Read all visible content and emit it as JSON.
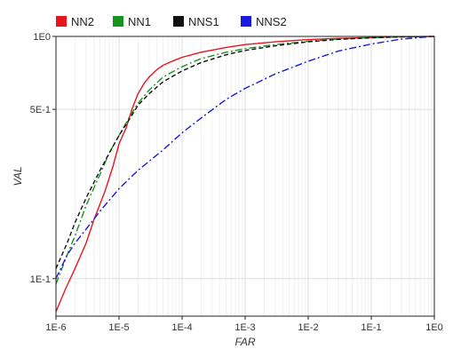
{
  "chart_data": {
    "type": "line",
    "xlabel": "FAR",
    "ylabel": "VAL",
    "x_scale": "log",
    "y_scale": "log",
    "xlim": [
      1e-06,
      1
    ],
    "ylim": [
      0.07,
      1
    ],
    "x_ticks": [
      1e-06,
      1e-05,
      0.0001,
      0.001,
      0.01,
      0.1,
      1
    ],
    "x_tick_labels": [
      "1E-6",
      "1E-5",
      "1E-4",
      "1E-3",
      "1E-2",
      "1E-1",
      "1E0"
    ],
    "y_ticks": [
      0.1,
      0.5,
      1
    ],
    "y_tick_labels": [
      "1E-1",
      "5E-1",
      "1E0"
    ],
    "grid": true,
    "legend_position": "top-left",
    "series": [
      {
        "name": "NN2",
        "color": "#e8141e",
        "dash": "solid",
        "points": [
          [
            1e-06,
            0.073
          ],
          [
            1.4e-06,
            0.09
          ],
          [
            2e-06,
            0.11
          ],
          [
            3e-06,
            0.14
          ],
          [
            4e-06,
            0.175
          ],
          [
            6e-06,
            0.23
          ],
          [
            8e-06,
            0.29
          ],
          [
            1e-05,
            0.36
          ],
          [
            1.3e-05,
            0.42
          ],
          [
            1.6e-05,
            0.5
          ],
          [
            2e-05,
            0.58
          ],
          [
            2.5e-05,
            0.64
          ],
          [
            3e-05,
            0.68
          ],
          [
            4e-05,
            0.73
          ],
          [
            5e-05,
            0.76
          ],
          [
            7e-05,
            0.79
          ],
          [
            0.0001,
            0.82
          ],
          [
            0.0002,
            0.86
          ],
          [
            0.0005,
            0.9
          ],
          [
            0.001,
            0.925
          ],
          [
            0.003,
            0.95
          ],
          [
            0.01,
            0.97
          ],
          [
            0.03,
            0.982
          ],
          [
            0.1,
            0.99
          ],
          [
            0.3,
            0.996
          ],
          [
            1,
            1
          ]
        ]
      },
      {
        "name": "NN1",
        "color": "#16961e",
        "dash": "dashdot",
        "points": [
          [
            1e-06,
            0.095
          ],
          [
            1.5e-06,
            0.125
          ],
          [
            2e-06,
            0.15
          ],
          [
            3e-06,
            0.2
          ],
          [
            5e-06,
            0.27
          ],
          [
            7e-06,
            0.33
          ],
          [
            1e-05,
            0.39
          ],
          [
            1.5e-05,
            0.47
          ],
          [
            2e-05,
            0.53
          ],
          [
            3e-05,
            0.6
          ],
          [
            5e-05,
            0.68
          ],
          [
            0.0001,
            0.75
          ],
          [
            0.0002,
            0.81
          ],
          [
            0.0005,
            0.86
          ],
          [
            0.001,
            0.89
          ],
          [
            0.003,
            0.925
          ],
          [
            0.01,
            0.955
          ],
          [
            0.03,
            0.975
          ],
          [
            0.1,
            0.988
          ],
          [
            0.3,
            0.996
          ],
          [
            1,
            1
          ]
        ]
      },
      {
        "name": "NNS1",
        "color": "#111111",
        "dash": "dashed",
        "points": [
          [
            1e-06,
            0.11
          ],
          [
            1.5e-06,
            0.14
          ],
          [
            2e-06,
            0.17
          ],
          [
            3e-06,
            0.215
          ],
          [
            5e-06,
            0.28
          ],
          [
            7e-06,
            0.33
          ],
          [
            1e-05,
            0.39
          ],
          [
            1.5e-05,
            0.46
          ],
          [
            2e-05,
            0.52
          ],
          [
            3e-05,
            0.58
          ],
          [
            5e-05,
            0.65
          ],
          [
            0.0001,
            0.72
          ],
          [
            0.0002,
            0.78
          ],
          [
            0.0005,
            0.84
          ],
          [
            0.001,
            0.875
          ],
          [
            0.003,
            0.915
          ],
          [
            0.01,
            0.95
          ],
          [
            0.03,
            0.972
          ],
          [
            0.1,
            0.987
          ],
          [
            0.3,
            0.995
          ],
          [
            1,
            1
          ]
        ]
      },
      {
        "name": "NNS2",
        "color": "#1a1adc",
        "dash": "dashdot",
        "points": [
          [
            1e-06,
            0.1
          ],
          [
            1.5e-06,
            0.125
          ],
          [
            2e-06,
            0.14
          ],
          [
            3e-06,
            0.16
          ],
          [
            5e-06,
            0.19
          ],
          [
            1e-05,
            0.235
          ],
          [
            2e-05,
            0.28
          ],
          [
            5e-05,
            0.34
          ],
          [
            0.0001,
            0.4
          ],
          [
            0.0002,
            0.46
          ],
          [
            0.0005,
            0.55
          ],
          [
            0.001,
            0.61
          ],
          [
            0.003,
            0.7
          ],
          [
            0.01,
            0.79
          ],
          [
            0.03,
            0.87
          ],
          [
            0.1,
            0.93
          ],
          [
            0.3,
            0.975
          ],
          [
            1,
            1
          ]
        ]
      }
    ]
  }
}
